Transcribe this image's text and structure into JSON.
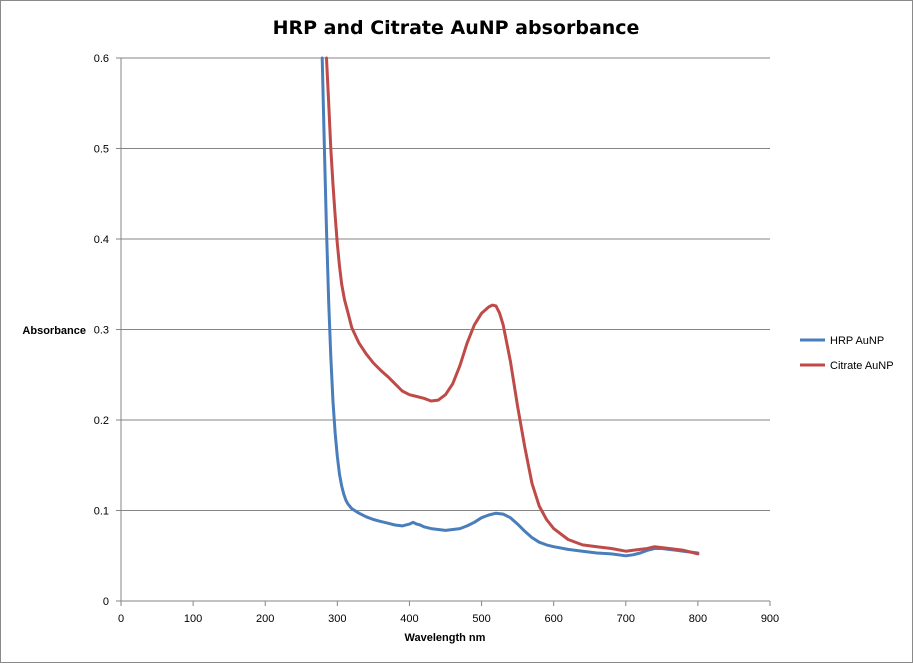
{
  "chart_data": {
    "type": "line",
    "title": "HRP and Citrate AuNP absorbance",
    "xlabel": "Wavelength nm",
    "ylabel": "Absorbance",
    "xlim": [
      0,
      900
    ],
    "ylim": [
      0,
      0.6
    ],
    "x_ticks": [
      "0",
      "100",
      "200",
      "300",
      "400",
      "500",
      "600",
      "700",
      "800",
      "900"
    ],
    "y_ticks": [
      "0",
      "0.1",
      "0.2",
      "0.3",
      "0.4",
      "0.5",
      "0.6"
    ],
    "grid": "horizontal major gridlines",
    "legend_position": "right",
    "series": [
      {
        "name": "HRP AuNP",
        "color": "#4a7ebb",
        "x": [
          279,
          282,
          285,
          288,
          291,
          294,
          297,
          300,
          303,
          306,
          309,
          312,
          315,
          320,
          330,
          340,
          350,
          360,
          370,
          380,
          390,
          400,
          405,
          410,
          415,
          420,
          430,
          440,
          450,
          460,
          470,
          480,
          490,
          500,
          510,
          520,
          530,
          540,
          550,
          560,
          570,
          580,
          590,
          600,
          620,
          640,
          660,
          680,
          700,
          710,
          720,
          730,
          740,
          750,
          760,
          770,
          780,
          790,
          800
        ],
        "y": [
          0.6,
          0.5,
          0.41,
          0.33,
          0.27,
          0.22,
          0.185,
          0.16,
          0.14,
          0.127,
          0.118,
          0.111,
          0.107,
          0.102,
          0.097,
          0.093,
          0.09,
          0.088,
          0.086,
          0.084,
          0.083,
          0.085,
          0.087,
          0.085,
          0.084,
          0.082,
          0.08,
          0.079,
          0.078,
          0.079,
          0.08,
          0.083,
          0.087,
          0.092,
          0.095,
          0.097,
          0.096,
          0.092,
          0.085,
          0.077,
          0.07,
          0.065,
          0.062,
          0.06,
          0.057,
          0.055,
          0.053,
          0.052,
          0.05,
          0.051,
          0.053,
          0.056,
          0.058,
          0.058,
          0.057,
          0.056,
          0.055,
          0.054,
          0.053
        ]
      },
      {
        "name": "Citrate AuNP",
        "color": "#be4b48",
        "x": [
          285,
          288,
          291,
          294,
          297,
          300,
          303,
          306,
          310,
          315,
          320,
          330,
          340,
          350,
          360,
          370,
          380,
          390,
          400,
          410,
          420,
          430,
          440,
          450,
          460,
          470,
          480,
          490,
          500,
          510,
          515,
          520,
          525,
          530,
          540,
          550,
          560,
          570,
          580,
          590,
          600,
          620,
          640,
          660,
          680,
          700,
          710,
          720,
          730,
          740,
          750,
          760,
          770,
          780,
          790,
          800
        ],
        "y": [
          0.6,
          0.55,
          0.5,
          0.46,
          0.425,
          0.395,
          0.37,
          0.35,
          0.333,
          0.318,
          0.302,
          0.285,
          0.273,
          0.263,
          0.255,
          0.248,
          0.24,
          0.232,
          0.228,
          0.226,
          0.224,
          0.221,
          0.222,
          0.228,
          0.24,
          0.26,
          0.285,
          0.305,
          0.318,
          0.325,
          0.327,
          0.326,
          0.318,
          0.305,
          0.265,
          0.215,
          0.17,
          0.13,
          0.105,
          0.09,
          0.08,
          0.068,
          0.062,
          0.06,
          0.058,
          0.055,
          0.056,
          0.057,
          0.058,
          0.06,
          0.059,
          0.058,
          0.057,
          0.056,
          0.054,
          0.052
        ]
      }
    ]
  }
}
